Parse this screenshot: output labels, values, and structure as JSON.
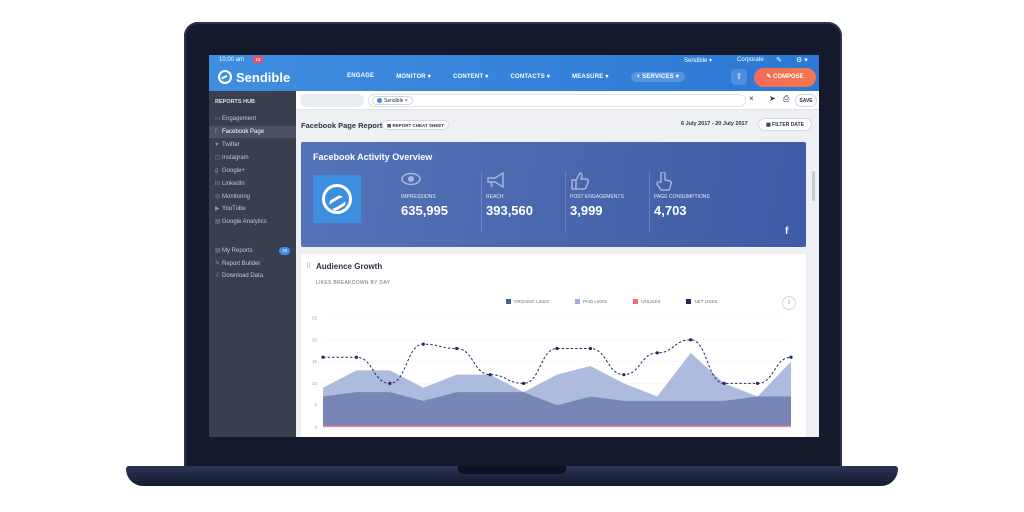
{
  "topline": {
    "time": "10:00 am",
    "notif_count": "15",
    "account": "Sendible",
    "account_chevron": "▾",
    "org": "Corporate",
    "org_chevron": "▾",
    "gear_chevron": "▾"
  },
  "brand": {
    "name": "Sendible"
  },
  "nav": [
    "ENGAGE",
    "MONITOR",
    "CONTENT",
    "CONTACTS",
    "MEASURE",
    "SERVICES"
  ],
  "nav_chevron": "▾",
  "services_prefix": "+",
  "compose_label": "COMPOSE",
  "sidebar": {
    "heading": "REPORTS HUB",
    "items": [
      {
        "label": "Engagement",
        "icon": "engagement-icon",
        "glyph": "▭"
      },
      {
        "label": "Facebook Page",
        "icon": "facebook-icon",
        "glyph": "f"
      },
      {
        "label": "Twitter",
        "icon": "twitter-icon",
        "glyph": "♥"
      },
      {
        "label": "Instagram",
        "icon": "instagram-icon",
        "glyph": "◻"
      },
      {
        "label": "Google+",
        "icon": "googleplus-icon",
        "glyph": "g"
      },
      {
        "label": "LinkedIn",
        "icon": "linkedin-icon",
        "glyph": "in"
      },
      {
        "label": "Monitoring",
        "icon": "monitoring-icon",
        "glyph": "◎"
      },
      {
        "label": "YouTube",
        "icon": "youtube-icon",
        "glyph": "▶"
      },
      {
        "label": "Google Analytics",
        "icon": "analytics-icon",
        "glyph": "▤"
      }
    ],
    "bottom": [
      {
        "label": "My Reports",
        "icon": "reports-icon",
        "glyph": "▤",
        "badge": "18"
      },
      {
        "label": "Report Builder",
        "icon": "pencil-icon",
        "glyph": "✎"
      },
      {
        "label": "Download Data",
        "icon": "download-icon",
        "glyph": "⇩"
      }
    ]
  },
  "filterbar": {
    "tag": "Sendible",
    "tag_close": "×",
    "clear": "×",
    "save": "SAVE"
  },
  "report": {
    "title": "Facebook Page Report",
    "cheat_sheet": "REPORT CHEAT SHEET",
    "date_range": "6 July 2017 - 20 July 2017",
    "filter_date": "FILTER DATE"
  },
  "overview": {
    "title": "Facebook Activity Overview",
    "stats": [
      {
        "label": "IMPRESSIONS",
        "value": "635,995",
        "icon": "eye-icon",
        "glyph": "◉"
      },
      {
        "label": "REACH",
        "value": "393,560",
        "icon": "megaphone-icon",
        "glyph": "📢"
      },
      {
        "label": "POST ENGAGEMENTS",
        "value": "3,999",
        "icon": "thumbs-up-icon",
        "glyph": "👍"
      },
      {
        "label": "PAGE CONSUMPTIONS",
        "value": "4,703",
        "icon": "hand-pointer-icon",
        "glyph": "☝"
      }
    ],
    "fb_letter": "f"
  },
  "growth": {
    "title": "Audience Growth",
    "subtitle": "LIKES BREAKDOWN BY DAY"
  },
  "colors": {
    "organic": "#4a5a96",
    "paid": "#9fb0d8",
    "unlikes": "#e9707a",
    "net": "#1f2b5c"
  },
  "chart_data": {
    "type": "area",
    "title": "LIKES BREAKDOWN BY DAY",
    "xlabel": "",
    "ylabel": "",
    "ylim": [
      0,
      25
    ],
    "yticks": [
      "0",
      "5",
      "10",
      "15",
      "20",
      "25"
    ],
    "x": [
      1,
      2,
      3,
      4,
      5,
      6,
      7,
      8,
      9,
      10,
      11,
      12,
      13,
      14,
      15
    ],
    "legend": [
      "ORGANIC LIKES",
      "PAID LIKES",
      "UNLIKES",
      "NET LIKES"
    ],
    "series": [
      {
        "name": "PAID LIKES",
        "values": [
          9,
          13,
          13,
          9,
          12,
          12,
          8,
          12,
          14,
          10,
          7,
          17,
          10,
          7,
          15
        ]
      },
      {
        "name": "ORGANIC LIKES",
        "values": [
          7,
          8,
          8,
          6,
          8,
          8,
          8,
          5,
          7,
          6,
          6,
          6,
          6,
          7,
          7
        ]
      },
      {
        "name": "UNLIKES",
        "values": [
          0,
          0,
          0,
          0,
          0,
          0,
          0,
          0,
          0,
          0,
          0,
          0,
          0,
          0,
          0
        ]
      },
      {
        "name": "NET LIKES",
        "values": [
          16,
          16,
          10,
          19,
          18,
          12,
          10,
          18,
          18,
          12,
          17,
          20,
          10,
          10,
          16
        ]
      }
    ]
  }
}
